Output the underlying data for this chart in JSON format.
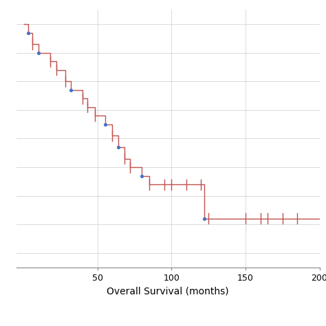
{
  "title": "",
  "xlabel": "Overall Survival (months)",
  "ylabel": "",
  "xlim": [
    -5,
    200
  ],
  "ylim": [
    0.15,
    1.05
  ],
  "background_color": "#ffffff",
  "plot_bg_color": "#ffffff",
  "footer_color": "#fdf8ec",
  "line_color": "#c0504d",
  "event_color": "#4472c4",
  "grid_color": "#cccccc",
  "xticks": [
    50,
    100,
    150,
    200
  ],
  "steps": [
    [
      0,
      1.0
    ],
    [
      3,
      0.97
    ],
    [
      6,
      0.93
    ],
    [
      10,
      0.9
    ],
    [
      18,
      0.87
    ],
    [
      22,
      0.84
    ],
    [
      28,
      0.8
    ],
    [
      32,
      0.77
    ],
    [
      40,
      0.74
    ],
    [
      43,
      0.71
    ],
    [
      48,
      0.68
    ],
    [
      55,
      0.65
    ],
    [
      60,
      0.61
    ],
    [
      64,
      0.57
    ],
    [
      68,
      0.53
    ],
    [
      72,
      0.5
    ],
    [
      80,
      0.47
    ],
    [
      85,
      0.44
    ],
    [
      95,
      0.44
    ],
    [
      100,
      0.44
    ],
    [
      110,
      0.44
    ],
    [
      120,
      0.44
    ],
    [
      122,
      0.32
    ],
    [
      125,
      0.32
    ],
    [
      165,
      0.32
    ],
    [
      200,
      0.32
    ]
  ],
  "event_x": [
    3,
    10,
    32,
    55,
    64,
    80,
    122
  ],
  "event_y": [
    0.97,
    0.9,
    0.77,
    0.65,
    0.57,
    0.47,
    0.32
  ],
  "censor_x": [
    6,
    18,
    22,
    28,
    40,
    43,
    48,
    60,
    68,
    72,
    85,
    95,
    100,
    110,
    120,
    125,
    150,
    160,
    165,
    175,
    185
  ],
  "censor_y": [
    0.93,
    0.87,
    0.84,
    0.8,
    0.74,
    0.71,
    0.68,
    0.61,
    0.53,
    0.5,
    0.44,
    0.44,
    0.44,
    0.44,
    0.44,
    0.32,
    0.32,
    0.32,
    0.32,
    0.32,
    0.32
  ]
}
